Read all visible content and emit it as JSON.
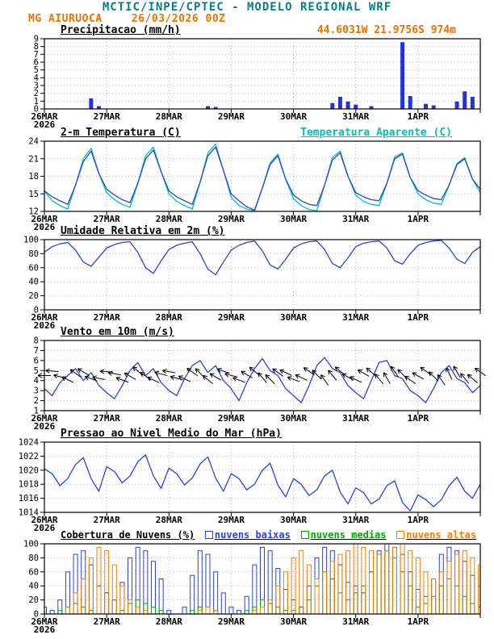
{
  "header": {
    "title": "MCTIC/INPE/CPTEC - MODELO REGIONAL WRF",
    "station": "MG AIURUOCA",
    "run": "26/03/2026 00Z",
    "location": "44.6031W 21.9756S 974m"
  },
  "colors": {
    "teal": "#067f7f",
    "orange": "#e87400",
    "blue": "#2943d6",
    "cyan": "#00c3b0",
    "green": "#00a800",
    "cloud_orange": "#f08000",
    "grid": "#b5b5b5"
  },
  "x_axis": {
    "total_hours": 168,
    "tick_hours": [
      0,
      24,
      48,
      72,
      96,
      120,
      144,
      168
    ],
    "tick_labels": [
      "26MAR",
      "27MAR",
      "28MAR",
      "29MAR",
      "30MAR",
      "31MAR",
      "1APR",
      ""
    ],
    "year_label": "2026"
  },
  "chart_data": [
    {
      "id": "precipitacao",
      "type": "bar",
      "title": "Precipitacao (mm/h)",
      "ylim": [
        0,
        9
      ],
      "yticks": [
        0,
        1,
        2,
        3,
        4,
        5,
        6,
        7,
        8,
        9
      ],
      "step_hours": 3,
      "series": [
        {
          "name": "precipitacao",
          "type": "bars",
          "fill": true,
          "width": 4,
          "color": "#2233dd",
          "values": [
            0,
            0,
            0,
            0,
            0,
            0,
            1.3,
            0.3,
            0,
            0,
            0,
            0,
            0,
            0,
            0,
            0,
            0,
            0,
            0,
            0,
            0,
            0.3,
            0.2,
            0,
            0,
            0,
            0,
            0,
            0,
            0,
            0,
            0,
            0,
            0,
            0,
            0,
            0,
            0.7,
            1.5,
            0.9,
            0.5,
            0,
            0.3,
            0,
            0,
            0,
            8.5,
            1.6,
            0,
            0.6,
            0.4,
            0,
            0,
            0.9,
            2.2,
            1.5,
            0
          ]
        }
      ]
    },
    {
      "id": "temperatura",
      "type": "line",
      "title": "2-m Temperatura (C)",
      "secondary_title": "Temperatura Aparente (C)",
      "ylim": [
        12,
        24
      ],
      "yticks": [
        12,
        15,
        18,
        21,
        24
      ],
      "step_hours": 3,
      "series": [
        {
          "name": "Temperatura Aparente (C)",
          "type": "line",
          "color": "#00c3b0",
          "values": [
            15.5,
            13.8,
            13.0,
            12.4,
            16.5,
            21.0,
            22.8,
            18.5,
            15.2,
            14.0,
            13.2,
            12.7,
            16.8,
            21.5,
            23.0,
            18.8,
            15.0,
            13.7,
            13.0,
            12.4,
            17.0,
            22.0,
            23.5,
            19.0,
            14.4,
            13.0,
            12.4,
            12.1,
            16.0,
            20.3,
            21.8,
            17.5,
            14.2,
            13.0,
            12.3,
            12.1,
            16.5,
            21.2,
            22.3,
            18.0,
            14.8,
            13.7,
            13.2,
            13.0,
            16.8,
            21.3,
            22.0,
            17.8,
            15.0,
            14.0,
            13.4,
            13.2,
            16.5,
            20.2,
            21.2,
            17.5,
            15.2
          ]
        },
        {
          "name": "2-m Temperatura (C)",
          "type": "line",
          "color": "#2943d6",
          "values": [
            15.5,
            14.5,
            13.8,
            13.2,
            16.5,
            20.5,
            22.3,
            18.5,
            15.8,
            14.8,
            14.0,
            13.5,
            16.8,
            21.0,
            22.5,
            18.8,
            15.5,
            14.5,
            13.8,
            13.2,
            17.0,
            21.5,
            23.0,
            19.0,
            15.0,
            13.8,
            12.8,
            12.2,
            16.0,
            20.0,
            21.5,
            17.5,
            14.8,
            13.8,
            13.2,
            13.0,
            16.5,
            20.8,
            22.0,
            18.0,
            15.2,
            14.5,
            14.0,
            13.8,
            16.8,
            21.0,
            21.8,
            17.8,
            15.5,
            14.8,
            14.2,
            14.0,
            16.5,
            20.0,
            21.0,
            17.5,
            15.8
          ]
        }
      ]
    },
    {
      "id": "umidade",
      "type": "line",
      "title": "Umidade Relativa em 2m (%)",
      "ylim": [
        0,
        100
      ],
      "yticks": [
        0,
        20,
        40,
        60,
        80,
        100
      ],
      "step_hours": 3,
      "series": [
        {
          "name": "umidade relativa",
          "type": "line",
          "color": "#2943d6",
          "values": [
            82,
            90,
            94,
            96,
            85,
            68,
            62,
            75,
            88,
            93,
            96,
            97,
            82,
            60,
            52,
            70,
            86,
            92,
            95,
            97,
            80,
            58,
            50,
            68,
            85,
            92,
            96,
            98,
            84,
            64,
            58,
            72,
            88,
            94,
            97,
            98,
            86,
            66,
            60,
            74,
            90,
            95,
            97,
            98,
            88,
            70,
            65,
            80,
            92,
            96,
            98,
            99,
            88,
            72,
            66,
            82,
            90
          ]
        }
      ]
    },
    {
      "id": "vento",
      "type": "line",
      "title": "Vento em 10m (m/s)",
      "ylim": [
        1,
        8
      ],
      "yticks": [
        1,
        2,
        3,
        4,
        5,
        6,
        7,
        8
      ],
      "step_hours": 3,
      "series": [
        {
          "name": "velocidade do vento",
          "type": "line",
          "color": "#2943d6",
          "values": [
            3.2,
            2.5,
            3.8,
            4.5,
            5.2,
            4.0,
            4.8,
            3.5,
            2.8,
            2.2,
            3.5,
            5.0,
            5.8,
            4.5,
            5.2,
            3.8,
            3.0,
            2.5,
            4.2,
            5.5,
            6.0,
            4.8,
            5.5,
            4.0,
            3.2,
            2.0,
            3.8,
            5.2,
            6.2,
            5.0,
            4.5,
            3.2,
            2.5,
            1.8,
            3.5,
            5.5,
            6.3,
            5.2,
            4.8,
            3.5,
            2.8,
            2.2,
            4.0,
            5.8,
            6.0,
            4.5,
            4.2,
            3.0,
            2.5,
            1.8,
            3.2,
            4.8,
            5.5,
            4.2,
            3.8,
            2.8,
            3.5
          ]
        },
        {
          "name": "direcao do vento",
          "type": "barbs",
          "color": "#000000",
          "base_y": 4.5,
          "directions": [
            90,
            95,
            105,
            115,
            125,
            120,
            110,
            100,
            95,
            100,
            110,
            120,
            130,
            125,
            115,
            105,
            100,
            105,
            115,
            125,
            135,
            130,
            120,
            110,
            105,
            110,
            120,
            130,
            140,
            135,
            125,
            115,
            110,
            115,
            125,
            135,
            145,
            140,
            130,
            120,
            115,
            120,
            130,
            140,
            150,
            145,
            135,
            125,
            120,
            125,
            135,
            145,
            155,
            150,
            140,
            130,
            125
          ]
        }
      ]
    },
    {
      "id": "pressao",
      "type": "line",
      "title": "Pressao ao Nivel Medio do Mar (hPa)",
      "ylim": [
        1014,
        1024
      ],
      "yticks": [
        1014,
        1016,
        1018,
        1020,
        1022,
        1024
      ],
      "step_hours": 3,
      "series": [
        {
          "name": "pressao ao nivel medio do mar",
          "type": "line",
          "color": "#2943d6",
          "values": [
            1020.2,
            1019.5,
            1017.8,
            1018.8,
            1020.8,
            1021.8,
            1018.8,
            1017.0,
            1020.5,
            1019.8,
            1018.2,
            1019.2,
            1021.2,
            1022.2,
            1019.2,
            1017.4,
            1020.3,
            1019.5,
            1017.9,
            1018.9,
            1020.9,
            1021.9,
            1018.9,
            1017.0,
            1019.5,
            1018.8,
            1017.2,
            1018.0,
            1020.0,
            1021.0,
            1017.9,
            1016.2,
            1018.8,
            1018.0,
            1016.4,
            1017.2,
            1019.2,
            1020.0,
            1016.9,
            1015.2,
            1017.5,
            1016.8,
            1015.2,
            1015.9,
            1017.8,
            1018.5,
            1015.4,
            1014.2,
            1016.5,
            1015.8,
            1014.8,
            1015.8,
            1017.8,
            1019.0,
            1017.0,
            1016.0,
            1018.0
          ]
        }
      ]
    },
    {
      "id": "nuvens",
      "type": "bar",
      "title": "Cobertura de Nuvens (%)",
      "ylim": [
        0,
        100
      ],
      "yticks": [
        0,
        20,
        40,
        60,
        80,
        100
      ],
      "step_hours": 3,
      "series": [
        {
          "name": "nuvens baixas",
          "type": "bars",
          "fill": false,
          "width": 5,
          "color": "#2943d6",
          "values": [
            10,
            5,
            20,
            60,
            85,
            90,
            70,
            40,
            30,
            20,
            45,
            80,
            95,
            90,
            75,
            50,
            5,
            0,
            10,
            55,
            90,
            85,
            60,
            30,
            10,
            5,
            25,
            70,
            95,
            90,
            65,
            35,
            20,
            10,
            40,
            80,
            95,
            90,
            70,
            45,
            40,
            30,
            60,
            90,
            100,
            95,
            85,
            60,
            35,
            25,
            50,
            85,
            95,
            90,
            75,
            55,
            40
          ]
        },
        {
          "name": "nuvens medias",
          "type": "bars",
          "fill": false,
          "width": 5,
          "color": "#00a800",
          "values": [
            0,
            0,
            5,
            10,
            15,
            10,
            5,
            0,
            0,
            0,
            5,
            15,
            20,
            15,
            10,
            5,
            0,
            0,
            0,
            5,
            10,
            10,
            5,
            0,
            0,
            0,
            5,
            10,
            20,
            15,
            10,
            5,
            5,
            10,
            20,
            40,
            60,
            50,
            30,
            20,
            30,
            40,
            60,
            85,
            90,
            80,
            60,
            40,
            10,
            15,
            25,
            40,
            50,
            40,
            25,
            15,
            10
          ]
        },
        {
          "name": "nuvens altas",
          "type": "bars",
          "fill": false,
          "width": 5,
          "color": "#f08000",
          "values": [
            0,
            0,
            0,
            10,
            30,
            50,
            80,
            95,
            90,
            70,
            40,
            20,
            10,
            5,
            0,
            0,
            0,
            0,
            0,
            0,
            5,
            10,
            5,
            0,
            0,
            0,
            0,
            5,
            10,
            20,
            40,
            60,
            80,
            90,
            70,
            50,
            60,
            75,
            85,
            90,
            100,
            95,
            90,
            85,
            90,
            95,
            100,
            90,
            80,
            60,
            50,
            60,
            75,
            85,
            90,
            80,
            70
          ]
        }
      ]
    }
  ]
}
